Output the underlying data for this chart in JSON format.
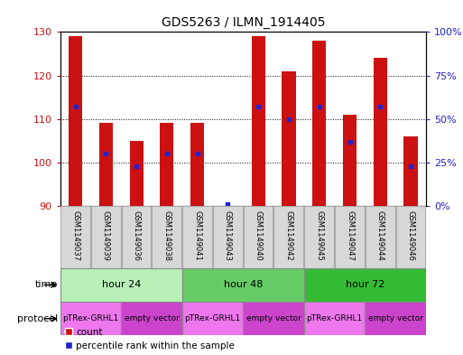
{
  "title": "GDS5263 / ILMN_1914405",
  "samples": [
    "GSM1149037",
    "GSM1149039",
    "GSM1149036",
    "GSM1149038",
    "GSM1149041",
    "GSM1149043",
    "GSM1149040",
    "GSM1149042",
    "GSM1149045",
    "GSM1149047",
    "GSM1149044",
    "GSM1149046"
  ],
  "counts": [
    129,
    109,
    105,
    109,
    109,
    90,
    129,
    121,
    128,
    111,
    124,
    106
  ],
  "percentile_ranks": [
    57,
    30,
    23,
    30,
    30,
    1,
    57,
    50,
    57,
    37,
    57,
    23
  ],
  "ylim_left": [
    90,
    130
  ],
  "yticks_left": [
    90,
    100,
    110,
    120,
    130
  ],
  "yticks_right": [
    0,
    25,
    50,
    75,
    100
  ],
  "ytick_labels_right": [
    "0%",
    "25%",
    "50%",
    "75%",
    "100%"
  ],
  "time_groups": [
    {
      "label": "hour 24",
      "start": 0,
      "end": 4,
      "color": "#b8f0b8"
    },
    {
      "label": "hour 48",
      "start": 4,
      "end": 8,
      "color": "#66cc66"
    },
    {
      "label": "hour 72",
      "start": 8,
      "end": 12,
      "color": "#33bb33"
    }
  ],
  "protocol_groups": [
    {
      "label": "pTRex-GRHL1",
      "start": 0,
      "end": 2,
      "color": "#ee77ee"
    },
    {
      "label": "empty vector",
      "start": 2,
      "end": 4,
      "color": "#cc44cc"
    },
    {
      "label": "pTRex-GRHL1",
      "start": 4,
      "end": 6,
      "color": "#ee77ee"
    },
    {
      "label": "empty vector",
      "start": 6,
      "end": 8,
      "color": "#cc44cc"
    },
    {
      "label": "pTRex-GRHL1",
      "start": 8,
      "end": 10,
      "color": "#ee77ee"
    },
    {
      "label": "empty vector",
      "start": 10,
      "end": 12,
      "color": "#cc44cc"
    }
  ],
  "bar_color": "#cc1111",
  "dot_color": "#2222cc",
  "bar_width": 0.45,
  "sample_box_bg": "#d8d8d8",
  "legend_items": [
    {
      "label": "count",
      "color": "#cc1111"
    },
    {
      "label": "percentile rank within the sample",
      "color": "#2222cc"
    }
  ]
}
